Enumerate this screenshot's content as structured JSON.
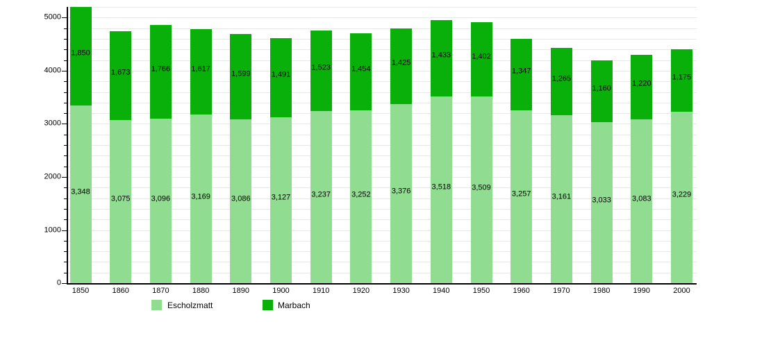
{
  "chart_data": {
    "type": "bar",
    "stacked": true,
    "title": "",
    "xlabel": "",
    "ylabel": "",
    "categories": [
      "1850",
      "1860",
      "1870",
      "1880",
      "1890",
      "1900",
      "1910",
      "1920",
      "1930",
      "1940",
      "1950",
      "1960",
      "1970",
      "1980",
      "1990",
      "2000"
    ],
    "series": [
      {
        "name": "Escholzmatt",
        "color": "#90DC90",
        "values": [
          3348,
          3075,
          3096,
          3169,
          3086,
          3127,
          3237,
          3252,
          3376,
          3518,
          3509,
          3257,
          3161,
          3033,
          3083,
          3229
        ]
      },
      {
        "name": "Marbach",
        "color": "#0AB00A",
        "values": [
          1850,
          1673,
          1766,
          1617,
          1599,
          1491,
          1523,
          1454,
          1425,
          1433,
          1402,
          1347,
          1265,
          1160,
          1220,
          1175
        ]
      }
    ],
    "ylim": [
      0,
      5200
    ],
    "ytick_interval": 1000,
    "ytick_labels": [
      "0",
      "1000",
      "2000",
      "3000",
      "4000",
      "5000"
    ],
    "ygrid_interval": 200,
    "grid": true,
    "legend_position": "bottom",
    "value_labels": true,
    "value_label_format": "comma-thousands",
    "colors": {
      "grid": "#E8E8E8",
      "axis": "#000000",
      "background": "#FFFFFF",
      "label_text": "#000000"
    }
  }
}
